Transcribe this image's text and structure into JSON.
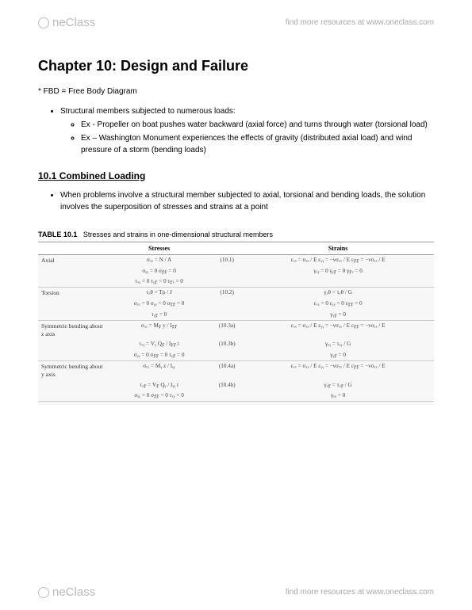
{
  "header": {
    "logo_text": "neClass",
    "resources_text": "find more resources at www.oneclass.com"
  },
  "footer": {
    "logo_text": "neClass",
    "resources_text": "find more resources at www.oneclass.com"
  },
  "chapter": {
    "title": "Chapter 10: Design and Failure",
    "fbd": "* FBD = Free Body Diagram",
    "bullet_main": "Structural members subjected to numerous loads:",
    "bullet_sub1": "Ex - Propeller on boat pushes water backward (axial force) and turns through water (torsional load)",
    "bullet_sub2": "Ex – Washington Monument experiences the effects of gravity (distributed axial load) and wind pressure of a storm (bending loads)"
  },
  "section": {
    "number_title": "10.1    Combined Loading",
    "body": "When problems involve a structural member subjected to axial, torsional and bending loads, the solution involves the superposition of stresses and strains at a point"
  },
  "table": {
    "caption_label": "TABLE 10.1",
    "caption_text": "Stresses and strains in one-dimensional structural members",
    "col_stresses": "Stresses",
    "col_strains": "Strains",
    "rows": {
      "axial": {
        "label": "Axial",
        "eq1": "(10.1)",
        "s1": "σₓₓ = N / A",
        "s2": "σᵧᵧ = 0      σ𝓏𝓏 = 0",
        "s3": "τₓᵧ = 0      τᵧ𝓏 = 0      τ𝓏ₓ = 0",
        "e1": "εₓₓ = σₓₓ / E      εᵧᵧ = −νσₓₓ / E      ε𝓏𝓏 = −νσₓₓ / E",
        "e2": "γₓᵧ = 0      γᵧ𝓏 = 0      γ𝓏ₓ = 0"
      },
      "torsion": {
        "label": "Torsion",
        "eq1": "(10.2)",
        "s1": "τₓθ = Tρ / J",
        "s2": "σₓₓ = 0      σᵧᵧ = 0      σ𝓏𝓏 = 0",
        "s3": "τᵧ𝓏 = 0",
        "e1": "γₓθ = τₓθ / G",
        "e2": "εₓₓ = 0      εᵧᵧ = 0      ε𝓏𝓏 = 0",
        "e3": "γᵧ𝓏 = 0"
      },
      "bend_z": {
        "label": "Symmetric bending about z axis",
        "eq1": "(10.3a)",
        "eq2": "(10.3b)",
        "s1": "σₓₓ = M𝓏 y / I𝓏𝓏",
        "s2": "τₓᵧ = Vᵧ Q𝓏 / I𝓏𝓏 t",
        "s3": "σᵧᵧ = 0      σ𝓏𝓏 = 0      τᵧ𝓏 = 0",
        "e1": "εₓₓ = σₓₓ / E      εᵧᵧ = −νσₓₓ / E      ε𝓏𝓏 = −νσₓₓ / E",
        "e2": "γₓᵧ = τₓᵧ / G",
        "e3": "γᵧ𝓏 = 0"
      },
      "bend_y": {
        "label": "Symmetric bending about y axis",
        "eq1": "(10.4a)",
        "eq2": "(10.4b)",
        "s1": "σₓₓ = Mᵧ z / Iᵧᵧ",
        "s2": "τₓ𝓏 = V𝓏 Qᵧ / Iᵧᵧ t",
        "s3": "σᵧᵧ = 0      σ𝓏𝓏 = 0      τₓᵧ = 0",
        "e1": "εₓₓ = σₓₓ / E      εᵧᵧ = −νσₓₓ / E      ε𝓏𝓏 = −νσₓₓ / E",
        "e2": "γₓ𝓏 = τₓ𝓏 / G",
        "e3": "γₓᵧ = 0"
      }
    }
  }
}
